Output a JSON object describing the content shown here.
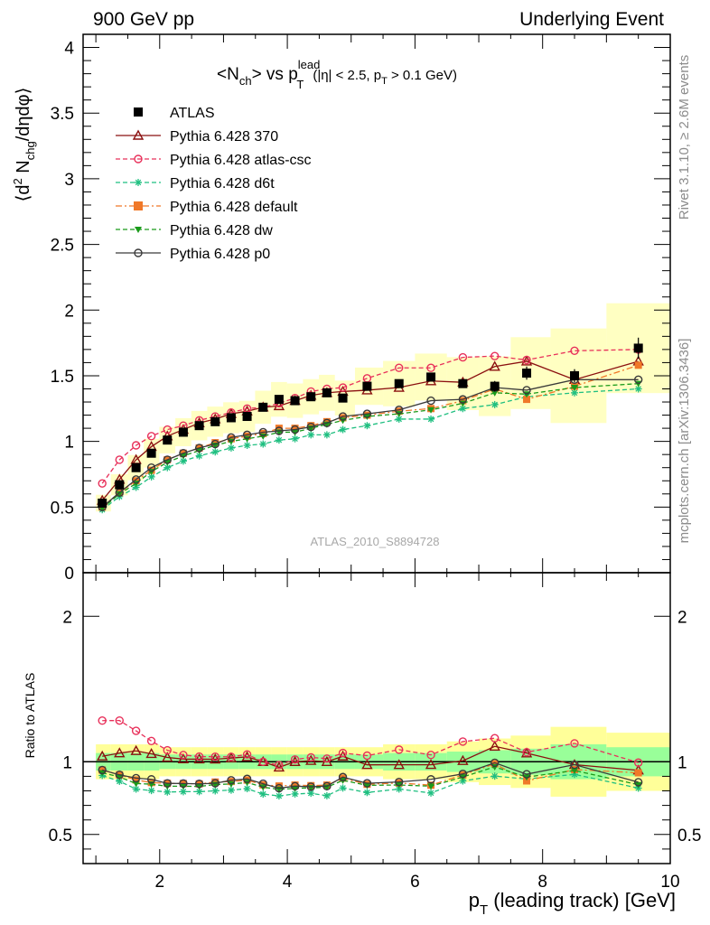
{
  "header": {
    "left": "900 GeV pp",
    "right": "Underlying Event"
  },
  "side_labels": {
    "top": "Rivet 3.1.10, ≥ 2.6M events",
    "bottom": "mcplots.cern.ch [arXiv:1306.3436]"
  },
  "watermark": "ATLAS_2010_S8894728",
  "plot_title": {
    "main": "<N",
    "main_sub": "ch",
    "mid": "> vs p",
    "lead_sup": "lead",
    "lead_sub": "T",
    "cuts_a": "(|η| < 2.5, p",
    "cuts_sub": "T",
    "cuts_b": " > 0.1 GeV)"
  },
  "y_label": {
    "a": "⟨d",
    "a_sup": "2",
    "b": " N",
    "b_sub": "chg",
    "c": "/dηdφ⟩"
  },
  "ratio_y_label": "Ratio to ATLAS",
  "x_label": {
    "a": "p",
    "a_sub": "T",
    "b": " (leading track) [GeV]"
  },
  "colors": {
    "atlas": "#000000",
    "p370": "#8b1010",
    "csc": "#e8305a",
    "d6t": "#1fbf80",
    "def": "#f07828",
    "dw": "#1a9a1a",
    "p0": "#3a3a3a",
    "band_outer": "#ffff99",
    "band_inner": "#99ff99"
  },
  "chart_data": {
    "type": "scatter",
    "x": [
      1.1,
      1.37,
      1.63,
      1.87,
      2.12,
      2.37,
      2.62,
      2.87,
      3.12,
      3.37,
      3.62,
      3.87,
      4.12,
      4.37,
      4.62,
      4.87,
      5.25,
      5.75,
      6.25,
      6.75,
      7.25,
      7.75,
      8.5,
      9.5
    ],
    "xlim": [
      0.8,
      10.0
    ],
    "ylim": [
      0,
      4.1
    ],
    "ratio_ylim": [
      0.3,
      2.3
    ],
    "x_ticks": [
      2,
      4,
      6,
      8,
      10
    ],
    "y_ticks": [
      0,
      0.5,
      1,
      1.5,
      2,
      2.5,
      3,
      3.5,
      4
    ],
    "ratio_ticks": [
      0.5,
      1,
      2
    ],
    "legend_position": "top-left",
    "data": {
      "name": "ATLAS",
      "values": [
        0.53,
        0.67,
        0.8,
        0.91,
        1.01,
        1.07,
        1.12,
        1.15,
        1.18,
        1.19,
        1.26,
        1.32,
        1.31,
        1.34,
        1.37,
        1.33,
        1.42,
        1.44,
        1.49,
        1.44,
        1.42,
        1.52,
        1.5,
        1.71
      ],
      "errors": [
        0.01,
        0.01,
        0.01,
        0.01,
        0.01,
        0.01,
        0.01,
        0.01,
        0.01,
        0.01,
        0.01,
        0.01,
        0.01,
        0.01,
        0.01,
        0.01,
        0.02,
        0.02,
        0.03,
        0.03,
        0.04,
        0.05,
        0.05,
        0.08
      ],
      "band_outer": [
        0.12,
        0.12,
        0.12,
        0.12,
        0.1,
        0.1,
        0.1,
        0.1,
        0.1,
        0.1,
        0.1,
        0.1,
        0.1,
        0.1,
        0.1,
        0.1,
        0.1,
        0.12,
        0.12,
        0.14,
        0.16,
        0.18,
        0.24,
        0.2
      ],
      "band_inner": [
        0.06,
        0.06,
        0.06,
        0.06,
        0.05,
        0.05,
        0.05,
        0.05,
        0.05,
        0.05,
        0.05,
        0.05,
        0.05,
        0.05,
        0.05,
        0.05,
        0.05,
        0.06,
        0.06,
        0.07,
        0.08,
        0.09,
        0.12,
        0.1
      ]
    },
    "series": [
      {
        "name": "Pythia 6.428 370",
        "key": "p370",
        "marker": "triangle-open",
        "dash": "",
        "values": [
          0.55,
          0.71,
          0.86,
          0.96,
          1.04,
          1.09,
          1.14,
          1.17,
          1.21,
          1.23,
          1.26,
          1.27,
          1.31,
          1.35,
          1.37,
          1.38,
          1.39,
          1.41,
          1.46,
          1.45,
          1.57,
          1.61,
          1.47,
          1.61
        ]
      },
      {
        "name": "Pythia 6.428 atlas-csc",
        "key": "csc",
        "marker": "circle-open",
        "dash": "5,3",
        "values": [
          0.68,
          0.86,
          0.97,
          1.04,
          1.09,
          1.12,
          1.16,
          1.19,
          1.22,
          1.25,
          1.26,
          1.29,
          1.33,
          1.38,
          1.4,
          1.41,
          1.48,
          1.56,
          1.56,
          1.64,
          1.65,
          1.62,
          1.69,
          1.7
        ]
      },
      {
        "name": "Pythia 6.428 d6t",
        "key": "d6t",
        "marker": "star",
        "dash": "5,3",
        "values": [
          0.48,
          0.58,
          0.65,
          0.73,
          0.8,
          0.85,
          0.89,
          0.92,
          0.95,
          0.97,
          0.98,
          1.01,
          1.02,
          1.05,
          1.05,
          1.09,
          1.12,
          1.17,
          1.17,
          1.25,
          1.28,
          1.34,
          1.37,
          1.4
        ]
      },
      {
        "name": "Pythia 6.428 default",
        "key": "def",
        "marker": "square",
        "dash": "7,3,2,3",
        "values": [
          0.5,
          0.61,
          0.7,
          0.78,
          0.86,
          0.91,
          0.95,
          0.99,
          1.02,
          1.04,
          1.06,
          1.1,
          1.1,
          1.12,
          1.15,
          1.18,
          1.2,
          1.23,
          1.25,
          1.31,
          1.4,
          1.32,
          1.42,
          1.58
        ]
      },
      {
        "name": "Pythia 6.428 dw",
        "key": "dw",
        "marker": "triangle-down",
        "dash": "5,3",
        "values": [
          0.49,
          0.6,
          0.68,
          0.77,
          0.84,
          0.89,
          0.93,
          0.97,
          1.0,
          1.02,
          1.04,
          1.07,
          1.07,
          1.1,
          1.13,
          1.16,
          1.19,
          1.21,
          1.24,
          1.29,
          1.37,
          1.36,
          1.41,
          1.44
        ]
      },
      {
        "name": "Pythia 6.428 p0",
        "key": "p0",
        "marker": "circle-open",
        "dash": "",
        "values": [
          0.5,
          0.61,
          0.71,
          0.8,
          0.86,
          0.91,
          0.95,
          0.98,
          1.03,
          1.05,
          1.07,
          1.08,
          1.09,
          1.11,
          1.14,
          1.19,
          1.21,
          1.24,
          1.31,
          1.32,
          1.41,
          1.39,
          1.47,
          1.47
        ]
      }
    ]
  }
}
